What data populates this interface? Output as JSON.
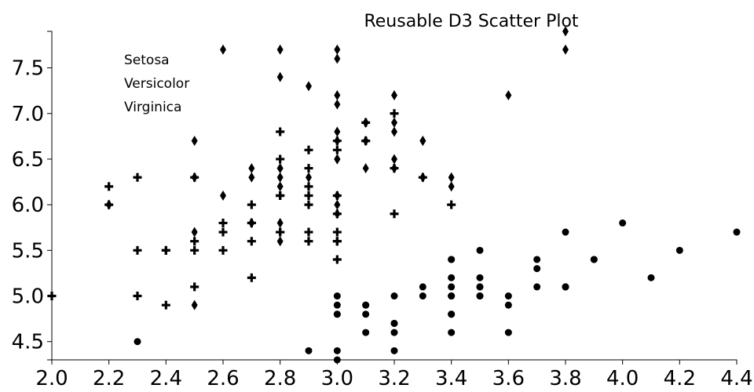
{
  "chart_data": {
    "type": "scatter",
    "title": "Reusable D3 Scatter Plot",
    "xlabel": "",
    "ylabel": "",
    "xlim": [
      2.0,
      4.4
    ],
    "ylim": [
      4.3,
      7.9
    ],
    "grid": false,
    "legend_position": "top-left",
    "x_ticks": [
      "2.0",
      "2.2",
      "2.4",
      "2.6",
      "2.8",
      "3.0",
      "3.2",
      "3.4",
      "3.6",
      "3.8",
      "4.0",
      "4.2",
      "4.4"
    ],
    "y_ticks": [
      "4.5",
      "5.0",
      "5.5",
      "6.0",
      "6.5",
      "7.0",
      "7.5"
    ],
    "series": [
      {
        "name": "Setosa",
        "marker": "circle",
        "color": "#000000",
        "points": [
          [
            3.5,
            5.1
          ],
          [
            3.0,
            4.9
          ],
          [
            3.2,
            4.7
          ],
          [
            3.1,
            4.6
          ],
          [
            3.6,
            5.0
          ],
          [
            3.9,
            5.4
          ],
          [
            3.4,
            4.6
          ],
          [
            3.4,
            5.0
          ],
          [
            2.9,
            4.4
          ],
          [
            3.1,
            4.9
          ],
          [
            3.7,
            5.4
          ],
          [
            3.4,
            4.8
          ],
          [
            3.0,
            4.8
          ],
          [
            3.0,
            4.3
          ],
          [
            4.0,
            5.8
          ],
          [
            4.4,
            5.7
          ],
          [
            3.9,
            5.4
          ],
          [
            3.5,
            5.1
          ],
          [
            3.8,
            5.7
          ],
          [
            3.8,
            5.1
          ],
          [
            3.4,
            5.4
          ],
          [
            3.7,
            5.1
          ],
          [
            3.6,
            4.6
          ],
          [
            3.3,
            5.1
          ],
          [
            3.4,
            4.8
          ],
          [
            3.0,
            5.0
          ],
          [
            3.4,
            5.0
          ],
          [
            3.5,
            5.2
          ],
          [
            3.4,
            5.2
          ],
          [
            3.2,
            4.7
          ],
          [
            3.1,
            4.8
          ],
          [
            3.4,
            5.4
          ],
          [
            4.1,
            5.2
          ],
          [
            4.2,
            5.5
          ],
          [
            3.1,
            4.9
          ],
          [
            3.2,
            5.0
          ],
          [
            3.5,
            5.5
          ],
          [
            3.6,
            4.9
          ],
          [
            3.0,
            4.4
          ],
          [
            3.4,
            5.1
          ],
          [
            3.5,
            5.0
          ],
          [
            2.3,
            4.5
          ],
          [
            3.2,
            4.4
          ],
          [
            3.5,
            5.0
          ],
          [
            3.8,
            5.1
          ],
          [
            3.0,
            4.8
          ],
          [
            3.8,
            5.1
          ],
          [
            3.2,
            4.6
          ],
          [
            3.7,
            5.3
          ],
          [
            3.3,
            5.0
          ]
        ]
      },
      {
        "name": "Versicolor",
        "marker": "cross",
        "color": "#000000",
        "points": [
          [
            3.2,
            7.0
          ],
          [
            3.2,
            6.4
          ],
          [
            3.1,
            6.9
          ],
          [
            2.3,
            5.5
          ],
          [
            2.8,
            6.5
          ],
          [
            2.8,
            5.7
          ],
          [
            3.3,
            6.3
          ],
          [
            2.4,
            4.9
          ],
          [
            2.9,
            6.6
          ],
          [
            2.7,
            5.2
          ],
          [
            2.0,
            5.0
          ],
          [
            3.0,
            5.9
          ],
          [
            2.2,
            6.0
          ],
          [
            2.9,
            6.1
          ],
          [
            2.9,
            5.6
          ],
          [
            3.1,
            6.7
          ],
          [
            3.0,
            5.6
          ],
          [
            2.7,
            5.8
          ],
          [
            2.2,
            6.2
          ],
          [
            2.5,
            5.6
          ],
          [
            3.2,
            5.9
          ],
          [
            2.8,
            6.1
          ],
          [
            2.5,
            6.3
          ],
          [
            2.8,
            6.1
          ],
          [
            2.9,
            6.4
          ],
          [
            3.0,
            6.6
          ],
          [
            2.8,
            6.8
          ],
          [
            3.0,
            6.7
          ],
          [
            2.9,
            6.0
          ],
          [
            2.6,
            5.7
          ],
          [
            2.4,
            5.5
          ],
          [
            2.4,
            5.5
          ],
          [
            2.7,
            5.8
          ],
          [
            2.7,
            6.0
          ],
          [
            3.0,
            5.4
          ],
          [
            3.4,
            6.0
          ],
          [
            3.1,
            6.7
          ],
          [
            2.3,
            6.3
          ],
          [
            3.0,
            5.6
          ],
          [
            2.5,
            5.5
          ],
          [
            2.6,
            5.5
          ],
          [
            3.0,
            6.1
          ],
          [
            2.6,
            5.8
          ],
          [
            2.3,
            5.0
          ],
          [
            2.7,
            5.6
          ],
          [
            3.0,
            5.7
          ],
          [
            2.9,
            5.7
          ],
          [
            2.9,
            6.2
          ],
          [
            2.5,
            5.1
          ],
          [
            2.8,
            5.7
          ]
        ]
      },
      {
        "name": "Virginica",
        "marker": "diamond",
        "color": "#000000",
        "points": [
          [
            3.3,
            6.3
          ],
          [
            2.7,
            5.8
          ],
          [
            3.0,
            7.1
          ],
          [
            2.9,
            6.3
          ],
          [
            3.0,
            6.5
          ],
          [
            3.0,
            7.6
          ],
          [
            2.5,
            4.9
          ],
          [
            2.9,
            7.3
          ],
          [
            2.5,
            6.7
          ],
          [
            3.6,
            7.2
          ],
          [
            3.2,
            6.5
          ],
          [
            2.7,
            6.4
          ],
          [
            3.0,
            6.8
          ],
          [
            2.5,
            5.7
          ],
          [
            2.8,
            5.8
          ],
          [
            3.2,
            6.4
          ],
          [
            3.0,
            6.5
          ],
          [
            3.8,
            7.7
          ],
          [
            2.6,
            7.7
          ],
          [
            2.2,
            6.0
          ],
          [
            3.2,
            6.9
          ],
          [
            2.8,
            5.6
          ],
          [
            2.8,
            7.7
          ],
          [
            2.7,
            6.3
          ],
          [
            3.3,
            6.7
          ],
          [
            3.2,
            7.2
          ],
          [
            2.8,
            6.2
          ],
          [
            3.0,
            6.1
          ],
          [
            2.8,
            6.4
          ],
          [
            3.0,
            7.2
          ],
          [
            2.8,
            7.4
          ],
          [
            3.8,
            7.9
          ],
          [
            2.8,
            6.4
          ],
          [
            2.8,
            6.3
          ],
          [
            2.6,
            6.1
          ],
          [
            3.0,
            7.7
          ],
          [
            3.4,
            6.3
          ],
          [
            3.1,
            6.4
          ],
          [
            3.0,
            6.0
          ],
          [
            3.1,
            6.9
          ],
          [
            3.1,
            6.7
          ],
          [
            3.1,
            6.9
          ],
          [
            2.7,
            5.8
          ],
          [
            3.2,
            6.8
          ],
          [
            3.3,
            6.7
          ],
          [
            3.0,
            6.7
          ],
          [
            2.5,
            6.3
          ],
          [
            3.0,
            6.5
          ],
          [
            3.4,
            6.2
          ],
          [
            3.0,
            5.9
          ]
        ]
      }
    ]
  }
}
